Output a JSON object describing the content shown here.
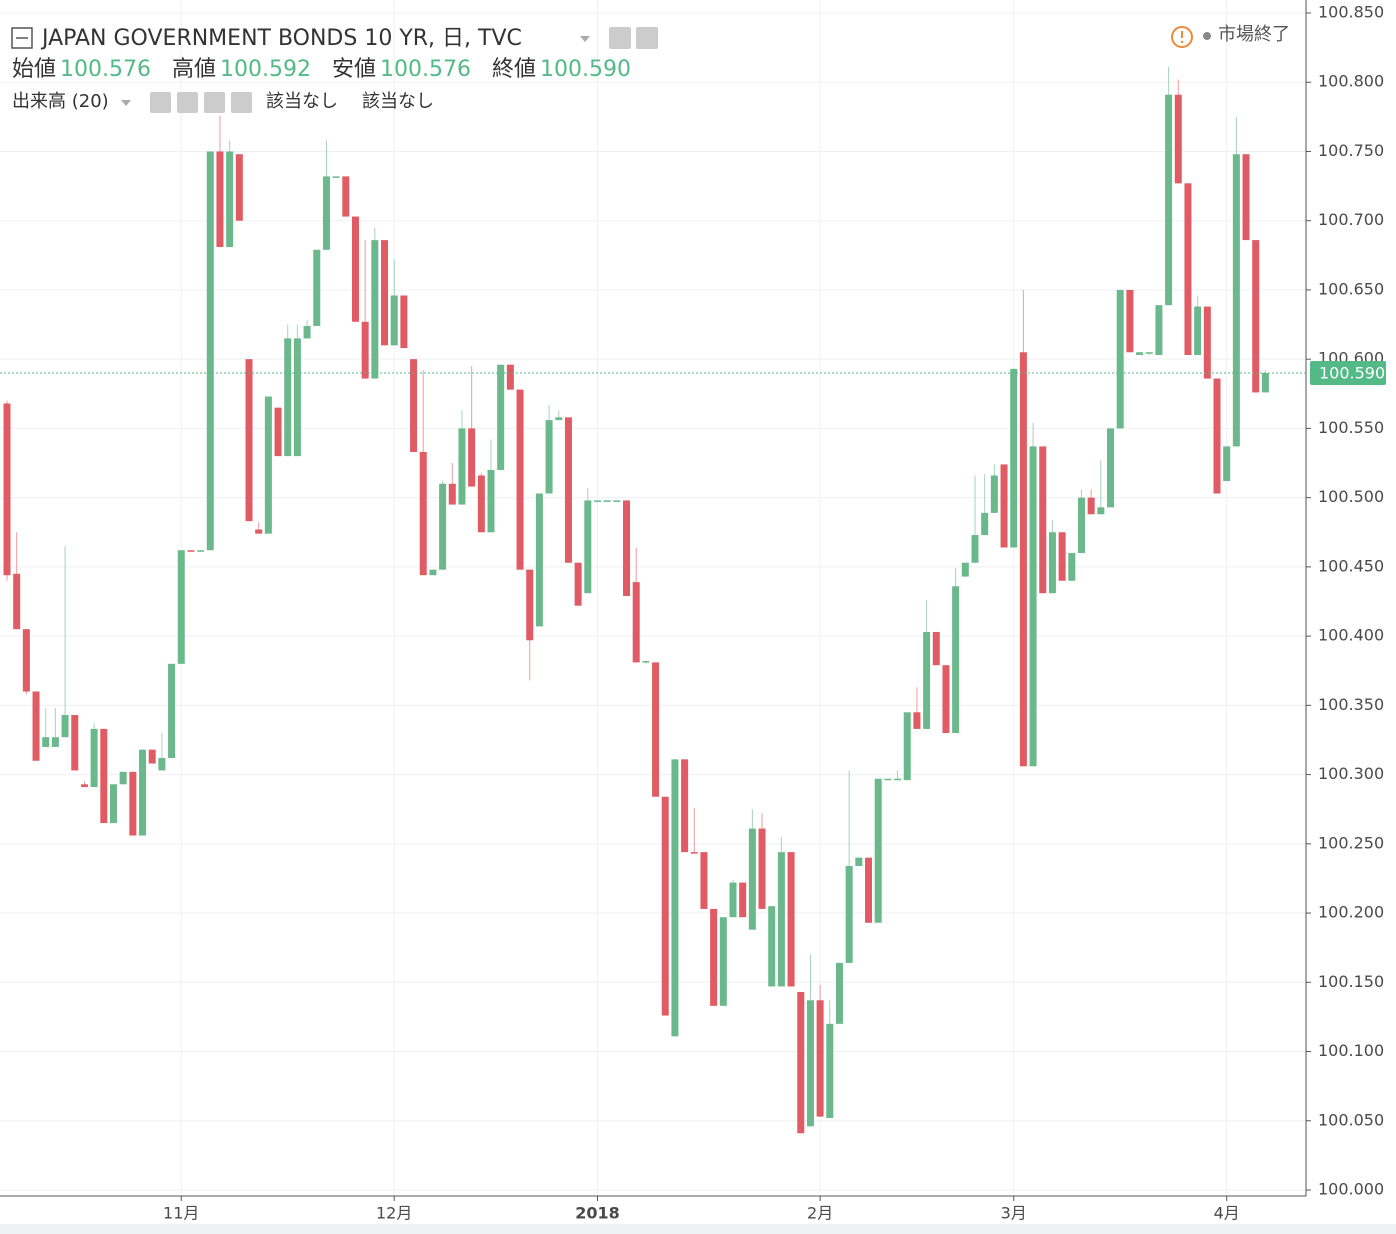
{
  "header": {
    "title": "JAPAN GOVERNMENT BONDS 10 YR, 日, TVC",
    "open_label": "始値",
    "open": "100.576",
    "high_label": "高値",
    "high": "100.592",
    "low_label": "安値",
    "low": "100.576",
    "close_label": "終値",
    "close": "100.590",
    "volume": "出来高 (20)",
    "na1": "該当なし",
    "na2": "該当なし",
    "status": "市場終了"
  },
  "chart_data": {
    "type": "candlestick",
    "up_color": "#6bb88c",
    "down_color": "#e05b63",
    "grid": true,
    "ylim": [
      100.0,
      100.85
    ],
    "yticks": [
      {
        "value": 100.0,
        "label": "100.000"
      },
      {
        "value": 100.05,
        "label": "100.050"
      },
      {
        "value": 100.1,
        "label": "100.100"
      },
      {
        "value": 100.15,
        "label": "100.150"
      },
      {
        "value": 100.2,
        "label": "100.200"
      },
      {
        "value": 100.25,
        "label": "100.250"
      },
      {
        "value": 100.3,
        "label": "100.300"
      },
      {
        "value": 100.35,
        "label": "100.350"
      },
      {
        "value": 100.4,
        "label": "100.400"
      },
      {
        "value": 100.45,
        "label": "100.450"
      },
      {
        "value": 100.5,
        "label": "100.500"
      },
      {
        "value": 100.55,
        "label": "100.550"
      },
      {
        "value": 100.6,
        "label": "100.600"
      },
      {
        "value": 100.65,
        "label": "100.650"
      },
      {
        "value": 100.7,
        "label": "100.700"
      },
      {
        "value": 100.75,
        "label": "100.750"
      },
      {
        "value": 100.8,
        "label": "100.800"
      },
      {
        "value": 100.85,
        "label": "100.850"
      }
    ],
    "last_price": {
      "value": 100.59,
      "label": "100.590"
    },
    "categories": [
      null,
      null,
      null,
      null,
      null,
      null,
      null,
      null,
      null,
      null,
      null,
      null,
      null,
      null,
      null,
      null,
      null,
      null,
      "11月",
      null,
      null,
      null,
      null,
      null,
      null,
      null,
      null,
      null,
      null,
      null,
      null,
      null,
      null,
      null,
      null,
      null,
      null,
      null,
      null,
      null,
      "12月",
      null,
      null,
      null,
      null,
      null,
      null,
      null,
      null,
      null,
      null,
      null,
      null,
      null,
      null,
      null,
      null,
      null,
      null,
      null,
      null,
      "2018",
      null,
      null,
      null,
      null,
      null,
      null,
      null,
      null,
      null,
      null,
      null,
      null,
      null,
      null,
      null,
      null,
      null,
      null,
      null,
      null,
      null,
      null,
      "2月",
      null,
      null,
      null,
      null,
      null,
      null,
      null,
      null,
      null,
      null,
      null,
      null,
      null,
      null,
      null,
      null,
      null,
      null,
      null,
      "3月",
      null,
      null,
      null,
      null,
      null,
      null,
      null,
      null,
      null,
      null,
      null,
      null,
      null,
      null,
      null,
      null,
      null,
      null,
      null,
      null,
      null,
      "4月",
      null,
      null,
      null,
      null
    ],
    "open": [
      100.568,
      100.445,
      100.405,
      100.36,
      100.32,
      100.32,
      100.327,
      100.343,
      100.293,
      100.291,
      100.333,
      100.265,
      100.293,
      100.302,
      100.256,
      100.318,
      100.303,
      100.312,
      100.38,
      100.462,
      100.461,
      100.462,
      100.75,
      100.681,
      100.748,
      100.6,
      100.477,
      100.474,
      100.565,
      100.53,
      100.53,
      100.615,
      100.624,
      100.679,
      100.731,
      100.732,
      100.703,
      100.627,
      100.586,
      100.686,
      100.61,
      100.646,
      100.6,
      100.533,
      100.444,
      100.448,
      100.51,
      100.495,
      100.55,
      100.516,
      100.475,
      100.52,
      100.596,
      100.578,
      100.448,
      100.407,
      100.503,
      100.556,
      100.558,
      100.453,
      100.431,
      100.497,
      100.498,
      100.498,
      100.498,
      100.439,
      100.381,
      100.381,
      100.284,
      100.111,
      100.311,
      100.244,
      100.244,
      100.203,
      100.133,
      100.197,
      100.222,
      100.188,
      100.261,
      100.147,
      100.147,
      100.244,
      100.143,
      100.046,
      100.137,
      100.052,
      100.12,
      100.164,
      100.234,
      100.24,
      100.193,
      100.296,
      100.296,
      100.296,
      100.345,
      100.333,
      100.403,
      100.379,
      100.33,
      100.443,
      100.453,
      100.473,
      100.489,
      100.524,
      100.464,
      100.605,
      100.306,
      100.537,
      100.431,
      100.475,
      100.44,
      100.46,
      100.5,
      100.488,
      100.493,
      100.55,
      100.65,
      100.603,
      100.604,
      100.603,
      100.639,
      100.791,
      100.727,
      100.603,
      100.638,
      100.586,
      100.512,
      100.537,
      100.748,
      100.686,
      100.576
    ],
    "high": [
      100.57,
      100.475,
      100.405,
      100.36,
      100.348,
      100.348,
      100.465,
      100.343,
      100.295,
      100.337,
      100.333,
      100.293,
      100.302,
      100.302,
      100.318,
      100.318,
      100.33,
      100.38,
      100.462,
      100.462,
      100.462,
      100.75,
      100.776,
      100.758,
      100.748,
      100.6,
      100.482,
      100.573,
      100.565,
      100.625,
      100.625,
      100.628,
      100.679,
      100.758,
      100.732,
      100.732,
      100.703,
      100.686,
      100.695,
      100.686,
      100.672,
      100.646,
      100.6,
      100.592,
      100.448,
      100.512,
      100.525,
      100.563,
      100.595,
      100.518,
      100.542,
      100.596,
      100.596,
      100.578,
      100.448,
      100.503,
      100.567,
      100.563,
      100.558,
      100.453,
      100.507,
      100.498,
      100.498,
      100.498,
      100.498,
      100.464,
      100.382,
      100.381,
      100.284,
      100.311,
      100.311,
      100.276,
      100.244,
      100.203,
      100.197,
      100.224,
      100.222,
      100.275,
      100.272,
      100.205,
      100.255,
      100.244,
      100.143,
      100.17,
      100.148,
      100.137,
      100.164,
      100.303,
      100.24,
      100.24,
      100.297,
      100.297,
      100.303,
      100.345,
      100.363,
      100.426,
      100.403,
      100.379,
      100.449,
      100.453,
      100.516,
      100.517,
      100.524,
      100.524,
      100.593,
      100.65,
      100.554,
      100.537,
      100.484,
      100.475,
      100.46,
      100.506,
      100.506,
      100.527,
      100.55,
      100.65,
      100.65,
      100.605,
      100.605,
      100.639,
      100.811,
      100.802,
      100.727,
      100.646,
      100.638,
      100.586,
      100.537,
      100.775,
      100.748,
      100.686,
      100.592
    ],
    "low": [
      100.44,
      100.405,
      100.358,
      100.31,
      100.32,
      100.32,
      100.327,
      100.303,
      100.291,
      100.291,
      100.265,
      100.265,
      100.293,
      100.256,
      100.256,
      100.308,
      100.303,
      100.312,
      100.38,
      100.461,
      100.461,
      100.462,
      100.681,
      100.681,
      100.7,
      100.483,
      100.474,
      100.474,
      100.53,
      100.53,
      100.53,
      100.615,
      100.624,
      100.679,
      100.731,
      100.703,
      100.627,
      100.586,
      100.586,
      100.61,
      100.61,
      100.608,
      100.533,
      100.444,
      100.444,
      100.448,
      100.495,
      100.495,
      100.508,
      100.475,
      100.475,
      100.52,
      100.578,
      100.448,
      100.368,
      100.407,
      100.503,
      100.556,
      100.453,
      100.422,
      100.431,
      100.497,
      100.497,
      100.497,
      100.429,
      100.381,
      100.38,
      100.284,
      100.126,
      100.111,
      100.244,
      100.243,
      100.203,
      100.133,
      100.133,
      100.197,
      100.197,
      100.188,
      100.203,
      100.147,
      100.147,
      100.147,
      100.041,
      100.046,
      100.053,
      100.052,
      100.12,
      100.164,
      100.234,
      100.193,
      100.193,
      100.296,
      100.296,
      100.296,
      100.333,
      100.333,
      100.379,
      100.33,
      100.33,
      100.443,
      100.453,
      100.473,
      100.489,
      100.464,
      100.464,
      100.306,
      100.306,
      100.431,
      100.431,
      100.44,
      100.44,
      100.46,
      100.488,
      100.488,
      100.493,
      100.55,
      100.605,
      100.603,
      100.603,
      100.603,
      100.639,
      100.727,
      100.603,
      100.603,
      100.586,
      100.503,
      100.512,
      100.537,
      100.686,
      100.576,
      100.576
    ],
    "close": [
      100.444,
      100.405,
      100.36,
      100.31,
      100.327,
      100.327,
      100.343,
      100.303,
      100.291,
      100.333,
      100.265,
      100.293,
      100.302,
      100.256,
      100.318,
      100.308,
      100.312,
      100.38,
      100.462,
      100.461,
      100.462,
      100.75,
      100.681,
      100.75,
      100.7,
      100.483,
      100.474,
      100.573,
      100.53,
      100.615,
      100.615,
      100.624,
      100.679,
      100.732,
      100.732,
      100.703,
      100.627,
      100.586,
      100.686,
      100.61,
      100.646,
      100.608,
      100.533,
      100.444,
      100.448,
      100.51,
      100.495,
      100.55,
      100.508,
      100.475,
      100.52,
      100.596,
      100.578,
      100.448,
      100.397,
      100.503,
      100.556,
      100.558,
      100.453,
      100.422,
      100.498,
      100.498,
      100.498,
      100.498,
      100.429,
      100.381,
      100.382,
      100.284,
      100.126,
      100.311,
      100.244,
      100.243,
      100.203,
      100.133,
      100.197,
      100.222,
      100.197,
      100.261,
      100.203,
      100.205,
      100.244,
      100.147,
      100.041,
      100.137,
      100.053,
      100.12,
      100.164,
      100.234,
      100.24,
      100.193,
      100.297,
      100.297,
      100.297,
      100.345,
      100.333,
      100.403,
      100.379,
      100.33,
      100.436,
      100.453,
      100.473,
      100.489,
      100.516,
      100.464,
      100.593,
      100.306,
      100.537,
      100.431,
      100.475,
      100.44,
      100.46,
      100.5,
      100.488,
      100.493,
      100.55,
      100.65,
      100.605,
      100.605,
      100.605,
      100.639,
      100.791,
      100.727,
      100.603,
      100.638,
      100.586,
      100.503,
      100.537,
      100.748,
      100.686,
      100.576,
      100.59
    ]
  }
}
